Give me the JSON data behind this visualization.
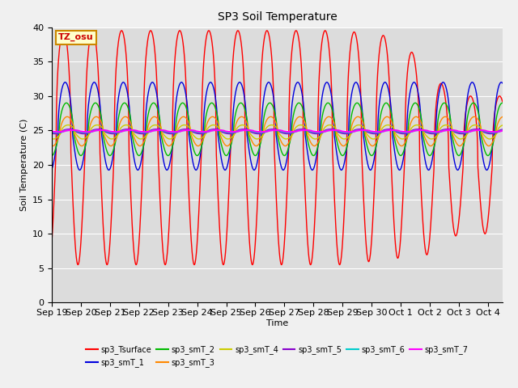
{
  "title": "SP3 Soil Temperature",
  "xlabel": "Time",
  "ylabel": "Soil Temperature (C)",
  "ylim": [
    0,
    40
  ],
  "plot_bg": "#dcdcdc",
  "fig_bg": "#f0f0f0",
  "annotation_text": "TZ_osu",
  "annotation_bg": "#ffffcc",
  "annotation_border": "#cc8800",
  "annotation_text_color": "#cc0000",
  "series_colors": {
    "sp3_Tsurface": "#ff0000",
    "sp3_smT_1": "#0000dd",
    "sp3_smT_2": "#00bb00",
    "sp3_smT_3": "#ff8800",
    "sp3_smT_4": "#cccc00",
    "sp3_smT_5": "#8800cc",
    "sp3_smT_6": "#00cccc",
    "sp3_smT_7": "#ff00ff"
  },
  "xtick_labels": [
    "Sep 19",
    "Sep 20",
    "Sep 21",
    "Sep 22",
    "Sep 23",
    "Sep 24",
    "Sep 25",
    "Sep 26",
    "Sep 27",
    "Sep 28",
    "Sep 29",
    "Sep 30",
    "Oct 1",
    "Oct 2",
    "Oct 3",
    "Oct 4"
  ],
  "n_days": 15.5,
  "yticks": [
    0,
    5,
    10,
    15,
    20,
    25,
    30,
    35,
    40
  ]
}
